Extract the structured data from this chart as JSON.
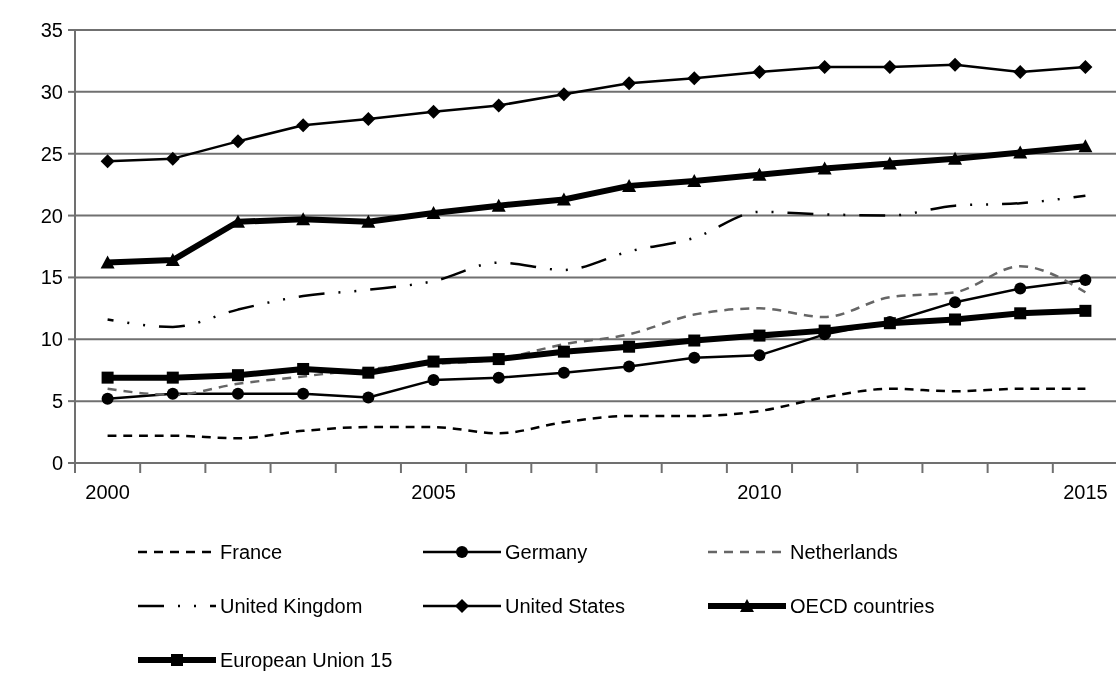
{
  "chart_data": {
    "type": "line",
    "categories": [
      "2000",
      null,
      null,
      null,
      null,
      "2005",
      null,
      null,
      null,
      null,
      "2010",
      null,
      null,
      null,
      null,
      "2015"
    ],
    "ylim": [
      0,
      35
    ],
    "yticks": [
      0,
      5,
      10,
      15,
      20,
      25,
      30,
      35
    ],
    "grid": "y",
    "legend": "bottom",
    "series": [
      {
        "name": "France",
        "color": "#000000",
        "line_style": "dashed",
        "marker": "none",
        "values": [
          2.2,
          2.2,
          2.0,
          2.6,
          2.9,
          2.9,
          2.4,
          3.3,
          3.8,
          3.8,
          4.2,
          5.3,
          6.0,
          5.8,
          6.0,
          6.0
        ]
      },
      {
        "name": "Germany",
        "color": "#000000",
        "line_style": "solid",
        "marker": "circle",
        "values": [
          5.2,
          5.6,
          5.6,
          5.6,
          5.3,
          6.7,
          6.9,
          7.3,
          7.8,
          8.5,
          8.7,
          10.4,
          11.4,
          13.0,
          14.1,
          14.8
        ]
      },
      {
        "name": "Netherlands",
        "color": "#666666",
        "line_style": "dashed",
        "marker": "none",
        "values": [
          6.0,
          5.5,
          6.4,
          7.0,
          7.6,
          8.0,
          8.4,
          9.6,
          10.4,
          12.0,
          12.5,
          11.8,
          13.4,
          13.8,
          15.9,
          13.8
        ]
      },
      {
        "name": "United  Kingdom",
        "color": "#000000",
        "line_style": "dashdot",
        "marker": "none",
        "values": [
          11.6,
          11.0,
          12.4,
          13.5,
          14.0,
          14.7,
          16.2,
          15.6,
          17.1,
          18.2,
          20.3,
          20.1,
          20.0,
          20.8,
          21.0,
          21.6
        ]
      },
      {
        "name": "United States",
        "color": "#000000",
        "line_style": "solid",
        "marker": "diamond",
        "values": [
          24.4,
          24.6,
          26.0,
          27.3,
          27.8,
          28.4,
          28.9,
          29.8,
          30.7,
          31.1,
          31.6,
          32.0,
          32.0,
          32.2,
          31.6,
          32.0
        ]
      },
      {
        "name": "OECD countries",
        "color": "#000000",
        "line_style": "solid",
        "marker": "triangle",
        "values": [
          16.2,
          16.4,
          19.5,
          19.7,
          19.5,
          20.2,
          20.8,
          21.3,
          22.4,
          22.8,
          23.3,
          23.8,
          24.2,
          24.6,
          25.1,
          25.6
        ]
      },
      {
        "name": "European Union  15",
        "color": "#000000",
        "line_style": "solid",
        "marker": "square",
        "values": [
          6.9,
          6.9,
          7.1,
          7.6,
          7.3,
          8.2,
          8.4,
          9.0,
          9.4,
          9.9,
          10.3,
          10.7,
          11.3,
          11.6,
          12.1,
          12.3
        ]
      }
    ]
  }
}
